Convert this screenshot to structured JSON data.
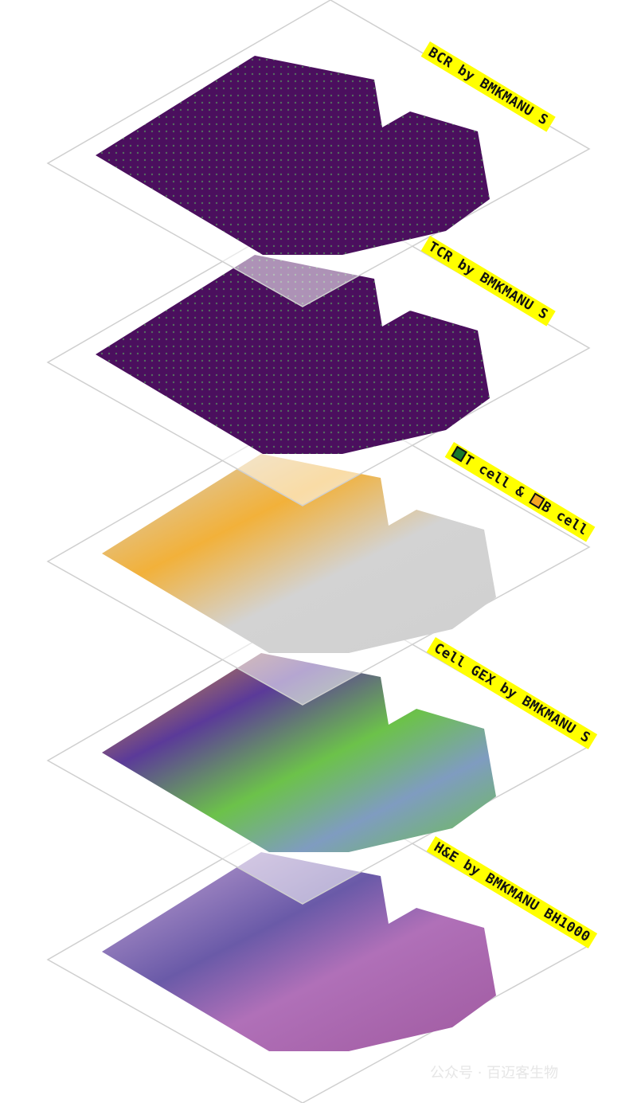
{
  "layers": [
    {
      "label": "BCR by BMKMANU S",
      "base_color": "#4b0f5e",
      "spot_color": "#5ec962"
    },
    {
      "label": "TCR by BMKMANU S",
      "base_color": "#4b0f5e",
      "spot_color": "#5ec962"
    },
    {
      "label_parts": [
        "T cell",
        "&",
        "B cell"
      ],
      "base_color": "#d3d3d3",
      "t_cell_color": "#1a7a2a",
      "b_cell_color": "#f5a623"
    },
    {
      "label": "Cell GEX by BMKMANU S",
      "colors": [
        "#6cc24a",
        "#f5a623",
        "#5b3a99",
        "#7f9cc0",
        "#222222",
        "#3a5fbf"
      ]
    },
    {
      "label": "H&E by BMKMANU BH1000",
      "colors": [
        "#a65aa8",
        "#6a5aa8",
        "#e8c8e0"
      ]
    }
  ],
  "watermark": "公众号 · 百迈客生物"
}
